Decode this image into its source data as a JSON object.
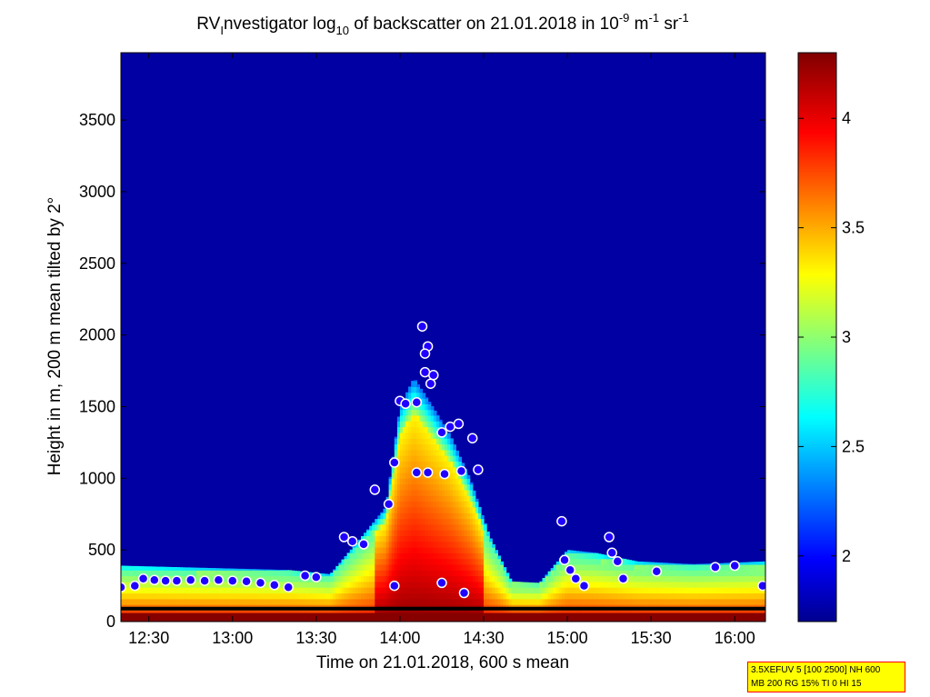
{
  "chart_data": {
    "type": "heatmap",
    "title_parts": {
      "t1": "RV",
      "t1_sub": "I",
      "t2": "nvestigator log",
      "t2_sub": "10",
      "t3": " of backscatter on 21.01.2018 in 10",
      "t3_sup": "-9",
      "t4": " m",
      "t4_sup": "-1",
      "t5": " sr",
      "t5_sup": "-1"
    },
    "xlabel": "Time on 21.01.2018, 600 s mean",
    "ylabel": "Height in m, 200 m mean tilted by 2°",
    "x_ticks": [
      "12:30",
      "13:00",
      "13:30",
      "14:00",
      "14:30",
      "15:00",
      "15:30",
      "16:00"
    ],
    "x_tick_values_min": [
      750,
      780,
      810,
      840,
      870,
      900,
      930,
      960
    ],
    "x_range_min": [
      740,
      971
    ],
    "y_ticks": [
      0,
      500,
      1000,
      1500,
      2000,
      2500,
      3000,
      3500
    ],
    "y_range": [
      0,
      3970
    ],
    "colorbar": {
      "ticks": [
        "2",
        "2.5",
        "3",
        "3.5",
        "4"
      ],
      "tick_values": [
        2,
        2.5,
        3,
        3.5,
        4
      ],
      "range": [
        1.7,
        4.3
      ],
      "colormap": "jet"
    },
    "background_level": 1.75,
    "boundary_layer_top": [
      {
        "t": 740,
        "h": 390
      },
      {
        "t": 760,
        "h": 380
      },
      {
        "t": 780,
        "h": 370
      },
      {
        "t": 800,
        "h": 360
      },
      {
        "t": 815,
        "h": 330
      },
      {
        "t": 825,
        "h": 560
      },
      {
        "t": 835,
        "h": 800
      },
      {
        "t": 840,
        "h": 1500
      },
      {
        "t": 845,
        "h": 1700
      },
      {
        "t": 850,
        "h": 1550
      },
      {
        "t": 858,
        "h": 1300
      },
      {
        "t": 865,
        "h": 1000
      },
      {
        "t": 872,
        "h": 600
      },
      {
        "t": 880,
        "h": 280
      },
      {
        "t": 890,
        "h": 270
      },
      {
        "t": 900,
        "h": 500
      },
      {
        "t": 910,
        "h": 480
      },
      {
        "t": 925,
        "h": 420
      },
      {
        "t": 945,
        "h": 400
      },
      {
        "t": 971,
        "h": 420
      }
    ],
    "cloud_base_markers": [
      {
        "t": 740,
        "h": 240
      },
      {
        "t": 745,
        "h": 250
      },
      {
        "t": 748,
        "h": 300
      },
      {
        "t": 752,
        "h": 290
      },
      {
        "t": 756,
        "h": 285
      },
      {
        "t": 760,
        "h": 285
      },
      {
        "t": 765,
        "h": 290
      },
      {
        "t": 770,
        "h": 285
      },
      {
        "t": 775,
        "h": 290
      },
      {
        "t": 780,
        "h": 285
      },
      {
        "t": 785,
        "h": 280
      },
      {
        "t": 790,
        "h": 270
      },
      {
        "t": 795,
        "h": 255
      },
      {
        "t": 800,
        "h": 240
      },
      {
        "t": 806,
        "h": 320
      },
      {
        "t": 810,
        "h": 310
      },
      {
        "t": 820,
        "h": 590
      },
      {
        "t": 823,
        "h": 560
      },
      {
        "t": 827,
        "h": 540
      },
      {
        "t": 831,
        "h": 920
      },
      {
        "t": 836,
        "h": 820
      },
      {
        "t": 838,
        "h": 1110
      },
      {
        "t": 840,
        "h": 1540
      },
      {
        "t": 842,
        "h": 1520
      },
      {
        "t": 846,
        "h": 1530
      },
      {
        "t": 848,
        "h": 2060
      },
      {
        "t": 850,
        "h": 1920
      },
      {
        "t": 849,
        "h": 1870
      },
      {
        "t": 849,
        "h": 1740
      },
      {
        "t": 851,
        "h": 1660
      },
      {
        "t": 852,
        "h": 1720
      },
      {
        "t": 846,
        "h": 1040
      },
      {
        "t": 850,
        "h": 1040
      },
      {
        "t": 856,
        "h": 1030
      },
      {
        "t": 862,
        "h": 1050
      },
      {
        "t": 868,
        "h": 1060
      },
      {
        "t": 855,
        "h": 1320
      },
      {
        "t": 858,
        "h": 1360
      },
      {
        "t": 861,
        "h": 1380
      },
      {
        "t": 866,
        "h": 1280
      },
      {
        "t": 898,
        "h": 700
      },
      {
        "t": 899,
        "h": 430
      },
      {
        "t": 901,
        "h": 360
      },
      {
        "t": 903,
        "h": 300
      },
      {
        "t": 906,
        "h": 250
      },
      {
        "t": 915,
        "h": 590
      },
      {
        "t": 916,
        "h": 480
      },
      {
        "t": 918,
        "h": 420
      },
      {
        "t": 920,
        "h": 300
      },
      {
        "t": 932,
        "h": 350
      },
      {
        "t": 953,
        "h": 380
      },
      {
        "t": 960,
        "h": 390
      },
      {
        "t": 970,
        "h": 250
      },
      {
        "t": 838,
        "h": 250
      },
      {
        "t": 855,
        "h": 270
      },
      {
        "t": 863,
        "h": 200
      }
    ],
    "surface_markers_height": 90
  },
  "info_box": {
    "line1": "3.5XEFUV 5 [100 2500] NH 600",
    "line2": "MB 200 RG 15% TI 0 HI 15",
    "border_color": "#ff0000",
    "background_color": "#ffff00"
  }
}
